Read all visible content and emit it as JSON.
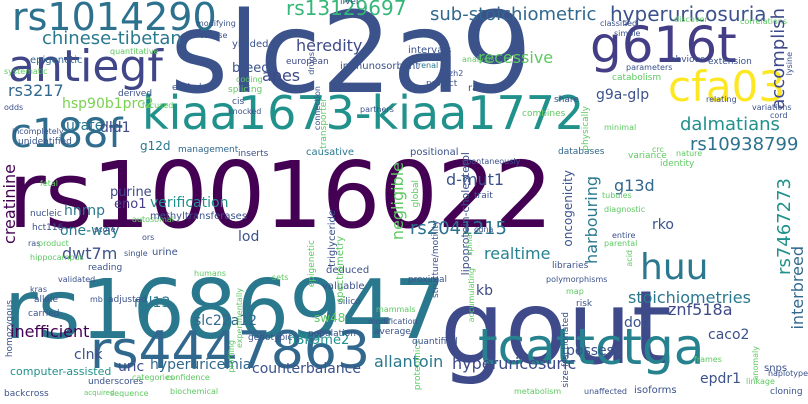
{
  "words": [
    {
      "text": "rs10016022",
      "color": "#440154",
      "vertical": false
    },
    {
      "text": "slc2a9",
      "color": "#3b528b",
      "vertical": false
    },
    {
      "text": "gout",
      "color": "#3e4a89",
      "vertical": false
    },
    {
      "text": "rs1686947",
      "color": "#2a788e",
      "vertical": false
    },
    {
      "text": "kiaa1673-kiaa1772",
      "color": "#21918c",
      "vertical": false
    },
    {
      "text": "rs4447863",
      "color": "#31688e",
      "vertical": false
    },
    {
      "text": "tcattctga",
      "color": "#26828e",
      "vertical": false
    },
    {
      "text": "g616t",
      "color": "#433e85",
      "vertical": false
    },
    {
      "text": "antiegf",
      "color": "#404688",
      "vertical": false
    },
    {
      "text": "rs1014290",
      "color": "#2c728e",
      "vertical": false
    },
    {
      "text": "cfa03",
      "color": "#fde725",
      "vertical": false
    },
    {
      "text": "c188f",
      "color": "#2f6c8e",
      "vertical": false
    },
    {
      "text": "huu",
      "color": "#2a788e",
      "vertical": false
    },
    {
      "text": "rs13129697",
      "color": "#35b779",
      "vertical": false
    },
    {
      "text": "hyperuricosuria",
      "color": "#3b528b",
      "vertical": false
    },
    {
      "text": "sub-stoichiometric",
      "color": "#31688e",
      "vertical": false
    },
    {
      "text": "chinese-tibetan",
      "color": "#2a788e",
      "vertical": false
    },
    {
      "text": "heredity",
      "color": "#3e4a89",
      "vertical": false
    },
    {
      "text": "recessive",
      "color": "#5ec962",
      "vertical": false
    },
    {
      "text": "accomplish",
      "color": "#3e4a89",
      "vertical": true
    },
    {
      "text": "rs3217",
      "color": "#31688e",
      "vertical": false
    },
    {
      "text": "apes",
      "color": "#3e4a89",
      "vertical": false
    },
    {
      "text": "breed",
      "color": "#3b528b",
      "vertical": false
    },
    {
      "text": "hsp90b1prc2",
      "color": "#7ad151",
      "vertical": false
    },
    {
      "text": "g9a-glp",
      "color": "#3b528b",
      "vertical": false
    },
    {
      "text": "urate",
      "color": "#2a788e",
      "vertical": false
    },
    {
      "text": "dld1",
      "color": "#3e4a89",
      "vertical": false
    },
    {
      "text": "dalmatians",
      "color": "#21918c",
      "vertical": false
    },
    {
      "text": "rs10938799",
      "color": "#2c728e",
      "vertical": false
    },
    {
      "text": "g12d",
      "color": "#2a788e",
      "vertical": false
    },
    {
      "text": "d-mut1",
      "color": "#3b528b",
      "vertical": false
    },
    {
      "text": "g13d",
      "color": "#31688e",
      "vertical": false
    },
    {
      "text": "creatinine",
      "color": "#440154",
      "vertical": true
    },
    {
      "text": "hnrnp",
      "color": "#2a788e",
      "vertical": false
    },
    {
      "text": "purine",
      "color": "#3e4a89",
      "vertical": false
    },
    {
      "text": "eno1",
      "color": "#433e85",
      "vertical": false
    },
    {
      "text": "verification",
      "color": "#21918c",
      "vertical": false
    },
    {
      "text": "lod",
      "color": "#3b528b",
      "vertical": false
    },
    {
      "text": "negligible",
      "color": "#5ec962",
      "vertical": true
    },
    {
      "text": "rs7467273",
      "color": "#21918c",
      "vertical": true
    },
    {
      "text": "harbouring",
      "color": "#2a788e",
      "vertical": true
    },
    {
      "text": "interbreed",
      "color": "#31688e",
      "vertical": true
    },
    {
      "text": "rko",
      "color": "#3b528b",
      "vertical": false
    },
    {
      "text": "one-way",
      "color": "#2a788e",
      "vertical": false
    },
    {
      "text": "rs2041215",
      "color": "#2c728e",
      "vertical": false
    },
    {
      "text": "realtime",
      "color": "#26828e",
      "vertical": false
    },
    {
      "text": "dwt7m",
      "color": "#3b528b",
      "vertical": false
    },
    {
      "text": "kb",
      "color": "#3e4a89",
      "vertical": false
    },
    {
      "text": "stoichiometries",
      "color": "#2a788e",
      "vertical": false
    },
    {
      "text": "dog",
      "color": "#3b528b",
      "vertical": false
    },
    {
      "text": "znf518a",
      "color": "#3e4a89",
      "vertical": false
    },
    {
      "text": "rpl13",
      "color": "#2a788e",
      "vertical": false
    },
    {
      "text": "slc22a12",
      "color": "#31688e",
      "vertical": false
    },
    {
      "text": "sw48",
      "color": "#5ec962",
      "vertical": false
    },
    {
      "text": "inefficient",
      "color": "#440154",
      "vertical": false
    },
    {
      "text": "caco2",
      "color": "#3b528b",
      "vertical": false
    },
    {
      "text": "clnk",
      "color": "#3b528b",
      "vertical": false
    },
    {
      "text": "h3k9me2",
      "color": "#21918c",
      "vertical": false
    },
    {
      "text": "possess",
      "color": "#3b528b",
      "vertical": false
    },
    {
      "text": "uric",
      "color": "#3e4a89",
      "vertical": false
    },
    {
      "text": "hyperuricemia",
      "color": "#31688e",
      "vertical": false
    },
    {
      "text": "counterbalance",
      "color": "#3b528b",
      "vertical": false
    },
    {
      "text": "allantoin",
      "color": "#2a788e",
      "vertical": false
    },
    {
      "text": "hyperuricosuric",
      "color": "#3e4a89",
      "vertical": false
    },
    {
      "text": "epdr1",
      "color": "#3b528b",
      "vertical": false
    },
    {
      "text": "computer-assisted",
      "color": "#21918c",
      "vertical": false
    },
    {
      "text": "quantitative",
      "color": "#5ec962",
      "vertical": false
    },
    {
      "text": "epigenetic",
      "color": "#31688e",
      "vertical": false
    },
    {
      "text": "systematic",
      "color": "#5ec962",
      "vertical": false
    },
    {
      "text": "missense",
      "color": "#3b528b",
      "vertical": false
    },
    {
      "text": "yielded",
      "color": "#3b528b",
      "vertical": false
    },
    {
      "text": "european",
      "color": "#3e4a89",
      "vertical": false
    },
    {
      "text": "immunosorbent",
      "color": "#3b528b",
      "vertical": false
    },
    {
      "text": "intervals",
      "color": "#3b528b",
      "vertical": false
    },
    {
      "text": "renal",
      "color": "#2a788e",
      "vertical": false
    },
    {
      "text": "ezh2",
      "color": "#3b528b",
      "vertical": false
    },
    {
      "text": "analysis",
      "color": "#5ec962",
      "vertical": false
    },
    {
      "text": "project",
      "color": "#3b528b",
      "vertical": false
    },
    {
      "text": "ratios",
      "color": "#3b528b",
      "vertical": false
    },
    {
      "text": "named",
      "color": "#3b528b",
      "vertical": false
    },
    {
      "text": "excluded",
      "color": "#3b528b",
      "vertical": false
    },
    {
      "text": "derived",
      "color": "#3b528b",
      "vertical": false
    },
    {
      "text": "coding",
      "color": "#5ec962",
      "vertical": false
    },
    {
      "text": "splicing",
      "color": "#5ec962",
      "vertical": false
    },
    {
      "text": "knocked",
      "color": "#3b528b",
      "vertical": false
    },
    {
      "text": "cis",
      "color": "#3b528b",
      "vertical": false
    },
    {
      "text": "management",
      "color": "#31688e",
      "vertical": false
    },
    {
      "text": "inserts",
      "color": "#3b528b",
      "vertical": false
    },
    {
      "text": "causative",
      "color": "#2a788e",
      "vertical": false
    },
    {
      "text": "positional",
      "color": "#3b528b",
      "vertical": false
    },
    {
      "text": "databases",
      "color": "#31688e",
      "vertical": false
    },
    {
      "text": "variance",
      "color": "#5ec962",
      "vertical": false
    },
    {
      "text": "identity",
      "color": "#5ec962",
      "vertical": false
    },
    {
      "text": "tubules",
      "color": "#5ec962",
      "vertical": false
    },
    {
      "text": "diagnostic",
      "color": "#5ec962",
      "vertical": false
    },
    {
      "text": "parental",
      "color": "#5ec962",
      "vertical": false
    },
    {
      "text": "entire",
      "color": "#3b528b",
      "vertical": false
    },
    {
      "text": "minimal",
      "color": "#5ec962",
      "vertical": false
    },
    {
      "text": "nature",
      "color": "#5ec962",
      "vertical": false
    },
    {
      "text": "unidentified",
      "color": "#3b528b",
      "vertical": false
    },
    {
      "text": "nucleic",
      "color": "#3b528b",
      "vertical": false
    },
    {
      "text": "hct116",
      "color": "#3b528b",
      "vertical": false
    },
    {
      "text": "ras",
      "color": "#3b528b",
      "vertical": false
    },
    {
      "text": "product",
      "color": "#5ec962",
      "vertical": false
    },
    {
      "text": "hippocampus",
      "color": "#5ec962",
      "vertical": false
    },
    {
      "text": "single",
      "color": "#3b528b",
      "vertical": false
    },
    {
      "text": "autosomal",
      "color": "#5ec962",
      "vertical": false
    },
    {
      "text": "score",
      "color": "#3b528b",
      "vertical": false
    },
    {
      "text": "fetal",
      "color": "#5ec962",
      "vertical": false
    },
    {
      "text": "methyltransferases",
      "color": "#3b528b",
      "vertical": false
    },
    {
      "text": "spontaneously",
      "color": "#3b528b",
      "vertical": false
    },
    {
      "text": "trait",
      "color": "#3b528b",
      "vertical": false
    },
    {
      "text": "cdna",
      "color": "#3b528b",
      "vertical": false
    },
    {
      "text": "libraries",
      "color": "#3b528b",
      "vertical": false
    },
    {
      "text": "polymorphisms",
      "color": "#3b528b",
      "vertical": false
    },
    {
      "text": "map",
      "color": "#5ec962",
      "vertical": false
    },
    {
      "text": "urine",
      "color": "#3b528b",
      "vertical": false
    },
    {
      "text": "reading",
      "color": "#3b528b",
      "vertical": false
    },
    {
      "text": "validated",
      "color": "#3b528b",
      "vertical": false
    },
    {
      "text": "kras",
      "color": "#3b528b",
      "vertical": false
    },
    {
      "text": "allele",
      "color": "#3b528b",
      "vertical": false
    },
    {
      "text": "carried",
      "color": "#3b528b",
      "vertical": false
    },
    {
      "text": "mb",
      "color": "#3b528b",
      "vertical": false
    },
    {
      "text": "adjusted",
      "color": "#3b528b",
      "vertical": false
    },
    {
      "text": "humans",
      "color": "#5ec962",
      "vertical": false
    },
    {
      "text": "sets",
      "color": "#5ec962",
      "vertical": false
    },
    {
      "text": "proximal",
      "color": "#3b528b",
      "vertical": false
    },
    {
      "text": "deduced",
      "color": "#3b528b",
      "vertical": false
    },
    {
      "text": "valuable",
      "color": "#3b528b",
      "vertical": false
    },
    {
      "text": "genotypic",
      "color": "#3b528b",
      "vertical": false
    },
    {
      "text": "population",
      "color": "#3b528b",
      "vertical": false
    },
    {
      "text": "silico",
      "color": "#3b528b",
      "vertical": false
    },
    {
      "text": "mammals",
      "color": "#5ec962",
      "vertical": false
    },
    {
      "text": "risk",
      "color": "#3b528b",
      "vertical": false
    },
    {
      "text": "modification",
      "color": "#3b528b",
      "vertical": false
    },
    {
      "text": "average",
      "color": "#3b528b",
      "vertical": false
    },
    {
      "text": "quantified",
      "color": "#3b528b",
      "vertical": false
    },
    {
      "text": "frames",
      "color": "#5ec962",
      "vertical": false
    },
    {
      "text": "snps",
      "color": "#3b528b",
      "vertical": false
    },
    {
      "text": "linkage",
      "color": "#5ec962",
      "vertical": false
    },
    {
      "text": "cloning",
      "color": "#3b528b",
      "vertical": false
    },
    {
      "text": "isoforms",
      "color": "#3b528b",
      "vertical": false
    },
    {
      "text": "metabolism",
      "color": "#5ec962",
      "vertical": false
    },
    {
      "text": "unaffected",
      "color": "#3b528b",
      "vertical": false
    },
    {
      "text": "biochemical",
      "color": "#5ec962",
      "vertical": false
    },
    {
      "text": "backcross",
      "color": "#3b528b",
      "vertical": false
    },
    {
      "text": "underscores",
      "color": "#3b528b",
      "vertical": false
    },
    {
      "text": "categories",
      "color": "#5ec962",
      "vertical": false
    },
    {
      "text": "confidence",
      "color": "#5ec962",
      "vertical": false
    },
    {
      "text": "sequence",
      "color": "#5ec962",
      "vertical": false
    },
    {
      "text": "acquired",
      "color": "#5ec962",
      "vertical": false
    },
    {
      "text": "classified",
      "color": "#3b528b",
      "vertical": false
    },
    {
      "text": "simple",
      "color": "#3b528b",
      "vertical": false
    },
    {
      "text": "discover",
      "color": "#5ec962",
      "vertical": false
    },
    {
      "text": "correlations",
      "color": "#5ec962",
      "vertical": false
    },
    {
      "text": "parameters",
      "color": "#3b528b",
      "vertical": false
    },
    {
      "text": "obvious",
      "color": "#3b528b",
      "vertical": false
    },
    {
      "text": "extension",
      "color": "#3b528b",
      "vertical": false
    },
    {
      "text": "catabolism",
      "color": "#5ec962",
      "vertical": false
    },
    {
      "text": "share",
      "color": "#3b528b",
      "vertical": false
    },
    {
      "text": "combines",
      "color": "#5ec962",
      "vertical": false
    },
    {
      "text": "partners",
      "color": "#3b528b",
      "vertical": false
    },
    {
      "text": "relating",
      "color": "#3b528b",
      "vertical": false
    },
    {
      "text": "variations",
      "color": "#3b528b",
      "vertical": false
    },
    {
      "text": "cord",
      "color": "#3b528b",
      "vertical": false
    },
    {
      "text": "crc",
      "color": "#5ec962",
      "vertical": false
    },
    {
      "text": "liver",
      "color": "#3b528b",
      "vertical": false
    },
    {
      "text": "odds",
      "color": "#3b528b",
      "vertical": false
    },
    {
      "text": "incompletely",
      "color": "#3b528b",
      "vertical": false
    },
    {
      "text": "focused",
      "color": "#5ec962",
      "vertical": false
    },
    {
      "text": "modifying",
      "color": "#3b528b",
      "vertical": false
    },
    {
      "text": "homozygous",
      "color": "#3b528b",
      "vertical": true
    },
    {
      "text": "ors",
      "color": "#3b528b",
      "vertical": false
    },
    {
      "text": "global",
      "color": "#5ec962",
      "vertical": true
    },
    {
      "text": "triglyceride",
      "color": "#3b528b",
      "vertical": true
    },
    {
      "text": "lipoprotein-cholesterol",
      "color": "#3b528b",
      "vertical": true
    },
    {
      "text": "oncogenicity",
      "color": "#3b528b",
      "vertical": true
    },
    {
      "text": "structure/motility",
      "color": "#3b528b",
      "vertical": true
    },
    {
      "text": "spectrometry",
      "color": "#5ec962",
      "vertical": true
    },
    {
      "text": "epigenetic",
      "color": "#5ec962",
      "vertical": true
    },
    {
      "text": "size-fractionated",
      "color": "#3b528b",
      "vertical": true
    },
    {
      "text": "proteomics",
      "color": "#5ec962",
      "vertical": true
    },
    {
      "text": "profiling",
      "color": "#5ec962",
      "vertical": true
    },
    {
      "text": "experimentally",
      "color": "#5ec962",
      "vertical": true
    },
    {
      "text": "drugs",
      "color": "#3b528b",
      "vertical": true
    },
    {
      "text": "connection",
      "color": "#3b528b",
      "vertical": true
    },
    {
      "text": "transporter",
      "color": "#5ec962",
      "vertical": true
    },
    {
      "text": "physically",
      "color": "#5ec962",
      "vertical": true
    },
    {
      "text": "spinal",
      "color": "#5ec962",
      "vertical": true
    },
    {
      "text": "lysine",
      "color": "#3b528b",
      "vertical": true
    },
    {
      "text": "accumulating",
      "color": "#5ec962",
      "vertical": true
    },
    {
      "text": "acid",
      "color": "#5ec962",
      "vertical": true
    },
    {
      "text": "haplotype",
      "color": "#3b528b",
      "vertical": false
    },
    {
      "text": "anomaly",
      "color": "#5ec962",
      "vertical": true
    }
  ]
}
